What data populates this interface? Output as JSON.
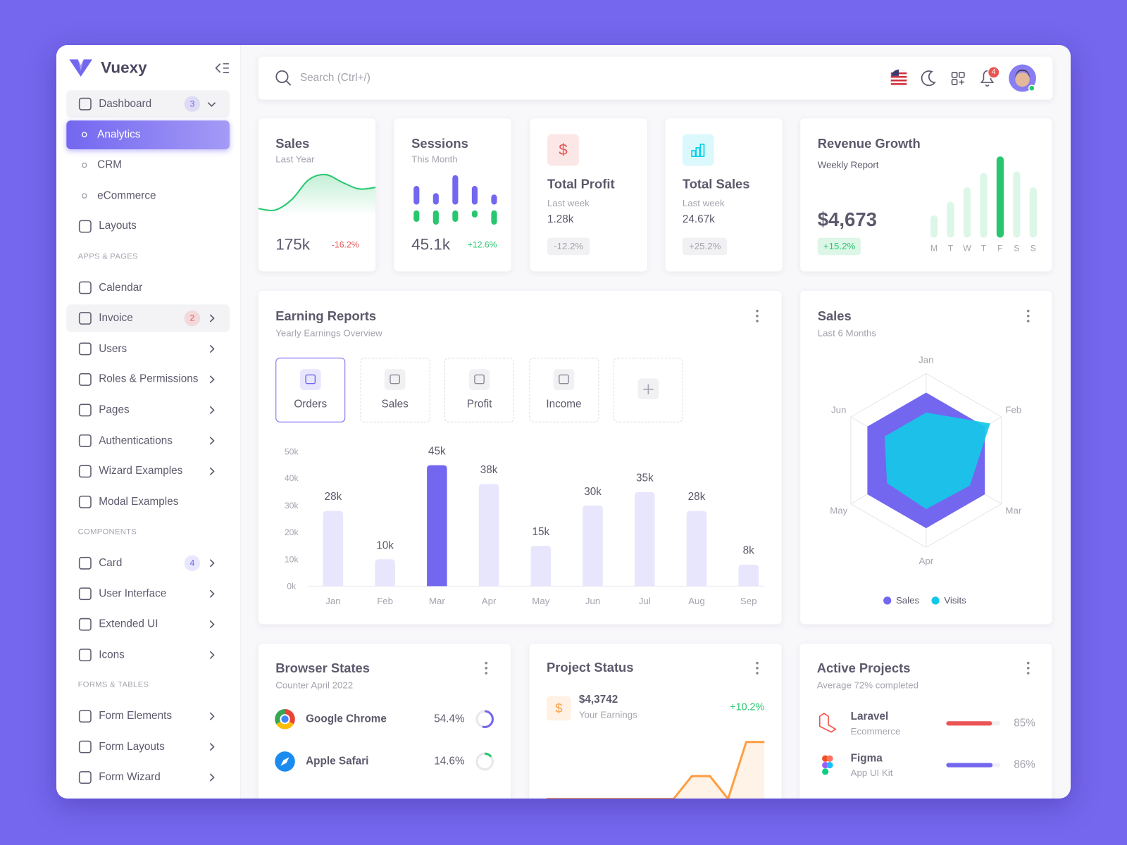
{
  "brand": "Vuexy",
  "search": "Search (Ctrl+/)",
  "notifications": 4,
  "sidebar": [
    {
      "label": "Dashboard",
      "badge": 3,
      "badge_color": "#7367f0",
      "submenu": true,
      "open": true,
      "shaded": true
    },
    {
      "label": "Analytics",
      "child": true,
      "active": true
    },
    {
      "label": "CRM",
      "child": true
    },
    {
      "label": "eCommerce",
      "child": true
    },
    {
      "label": "Layouts"
    },
    {
      "section": "APPS & PAGES"
    },
    {
      "label": "Calendar"
    },
    {
      "label": "Invoice",
      "badge": 2,
      "badge_color": "#ea5455",
      "submenu": true,
      "shaded": true
    },
    {
      "label": "Users",
      "submenu": true
    },
    {
      "label": "Roles & Permissions",
      "submenu": true
    },
    {
      "label": "Pages",
      "submenu": true
    },
    {
      "label": "Authentications",
      "submenu": true
    },
    {
      "label": "Wizard Examples",
      "submenu": true
    },
    {
      "label": "Modal Examples"
    },
    {
      "section": "COMPONENTS"
    },
    {
      "label": "Card",
      "badge": 4,
      "badge_color": "#7367f0",
      "submenu": true
    },
    {
      "label": "User Interface",
      "submenu": true
    },
    {
      "label": "Extended UI",
      "submenu": true
    },
    {
      "label": "Icons",
      "submenu": true
    },
    {
      "section": "FORMS & TABLES"
    },
    {
      "label": "Form Elements",
      "submenu": true
    },
    {
      "label": "Form Layouts",
      "submenu": true
    },
    {
      "label": "Form Wizard",
      "submenu": true
    }
  ],
  "stats": [
    {
      "title": "Sales",
      "subtitle": "Last Year",
      "value": "175k",
      "change": "-16.2%",
      "change_color": "#ea5455",
      "chart": {
        "type": "area",
        "values": [
          10,
          8,
          22,
          48,
          55,
          45,
          36,
          38
        ],
        "ylim": [
          0,
          60
        ],
        "color": "#28c76f"
      }
    },
    {
      "title": "Sessions",
      "subtitle": "This Month",
      "value": "45.1k",
      "change": "+12.6%",
      "change_color": "#28c76f",
      "chart": {
        "type": "split-bar",
        "ylim": [
          0,
          50
        ],
        "series": [
          {
            "color": "#7367f0",
            "values": [
              26,
              16,
              41,
              26,
              14
            ]
          },
          {
            "color": "#28c76f",
            "values": [
              16,
              20,
              16,
              10,
              20
            ]
          }
        ]
      }
    },
    {
      "title": "Total Profit",
      "subtitle": "Last week",
      "value": "1.28k",
      "change": "-12.2%",
      "icon_color": "#ea5455"
    },
    {
      "title": "Total Sales",
      "subtitle": "Last week",
      "value": "24.67k",
      "change": "+25.2%",
      "icon_color": "#00cfe8"
    }
  ],
  "revenue": {
    "title": "Revenue Growth",
    "subtitle": "Weekly Report",
    "value": "$4,673",
    "change": "+15.2%",
    "chart": {
      "type": "bar",
      "categories": [
        "M",
        "T",
        "W",
        "T",
        "F",
        "S",
        "S"
      ],
      "values": [
        31,
        50,
        70,
        90,
        113,
        92,
        70
      ],
      "ylim": [
        0,
        120
      ],
      "colors": [
        "#dcf6e8",
        "#dcf6e8",
        "#dcf6e8",
        "#dcf6e8",
        "#28c76f",
        "#dcf6e8",
        "#dcf6e8"
      ]
    }
  },
  "earning": {
    "title": "Earning Reports",
    "subtitle": "Yearly Earnings Overview",
    "tabs": [
      "Orders",
      "Sales",
      "Profit",
      "Income"
    ],
    "chart": {
      "type": "bar",
      "categories": [
        "Jan",
        "Feb",
        "Mar",
        "Apr",
        "May",
        "Jun",
        "Jul",
        "Aug",
        "Sep"
      ],
      "values": [
        28000,
        10000,
        45000,
        38000,
        15000,
        30000,
        35000,
        28000,
        8000
      ],
      "value_labels": [
        "28k",
        "10k",
        "45k",
        "38k",
        "15k",
        "30k",
        "35k",
        "28k",
        "8k"
      ],
      "colors": [
        "#e8e6fc",
        "#e8e6fc",
        "#7367f0",
        "#e8e6fc",
        "#e8e6fc",
        "#e8e6fc",
        "#e8e6fc",
        "#e8e6fc",
        "#e8e6fc"
      ],
      "ylim": [
        0,
        50000
      ],
      "yticks": [
        {
          "value": 0,
          "label": "0k"
        },
        {
          "value": 10000,
          "label": "10k"
        },
        {
          "value": 20000,
          "label": "20k"
        },
        {
          "value": 30000,
          "label": "30k"
        },
        {
          "value": 40000,
          "label": "40k"
        },
        {
          "value": 50000,
          "label": "50k"
        }
      ]
    }
  },
  "radar": {
    "title": "Sales",
    "subtitle": "Last 6 Months",
    "chart": {
      "type": "radar",
      "categories": [
        "Jan",
        "Feb",
        "Mar",
        "Apr",
        "May",
        "Jun"
      ],
      "ylim": [
        0,
        100
      ],
      "yticks": [
        50,
        75,
        100
      ],
      "legend": "bottom",
      "series": [
        {
          "name": "Sales",
          "color": "#7367f0",
          "values": [
            78,
            78,
            78,
            78,
            78,
            78
          ]
        },
        {
          "name": "Visits",
          "color": "#16c8e8",
          "values": [
            55,
            85,
            58,
            56,
            52,
            55
          ]
        }
      ]
    }
  },
  "browser": {
    "title": "Browser States",
    "subtitle": "Counter April 2022",
    "rows": [
      {
        "name": "Google Chrome",
        "value": 54.4,
        "value_label": "54.4%",
        "color": "#7367f0"
      },
      {
        "name": "Apple Safari",
        "value": 14.6,
        "value_label": "14.6%",
        "color": "#28c76f"
      }
    ]
  },
  "project": {
    "title": "Project Status",
    "amount": "$4,3742",
    "amount_label": "Your Earnings",
    "change": "+10.2%",
    "chart": {
      "type": "area",
      "values": [
        0,
        0,
        0,
        0,
        0,
        0,
        0,
        0,
        40,
        40,
        0,
        100,
        100
      ],
      "ylim": [
        0,
        120
      ],
      "color": "#ff9f43"
    }
  },
  "active": {
    "title": "Active Projects",
    "subtitle": "Average 72% completed",
    "rows": [
      {
        "name": "Laravel",
        "subtitle": "Ecommerce",
        "value": 85,
        "value_label": "85%",
        "color": "#ea5455"
      },
      {
        "name": "Figma",
        "subtitle": "App UI Kit",
        "value": 86,
        "value_label": "86%",
        "color": "#7367f0"
      }
    ]
  }
}
